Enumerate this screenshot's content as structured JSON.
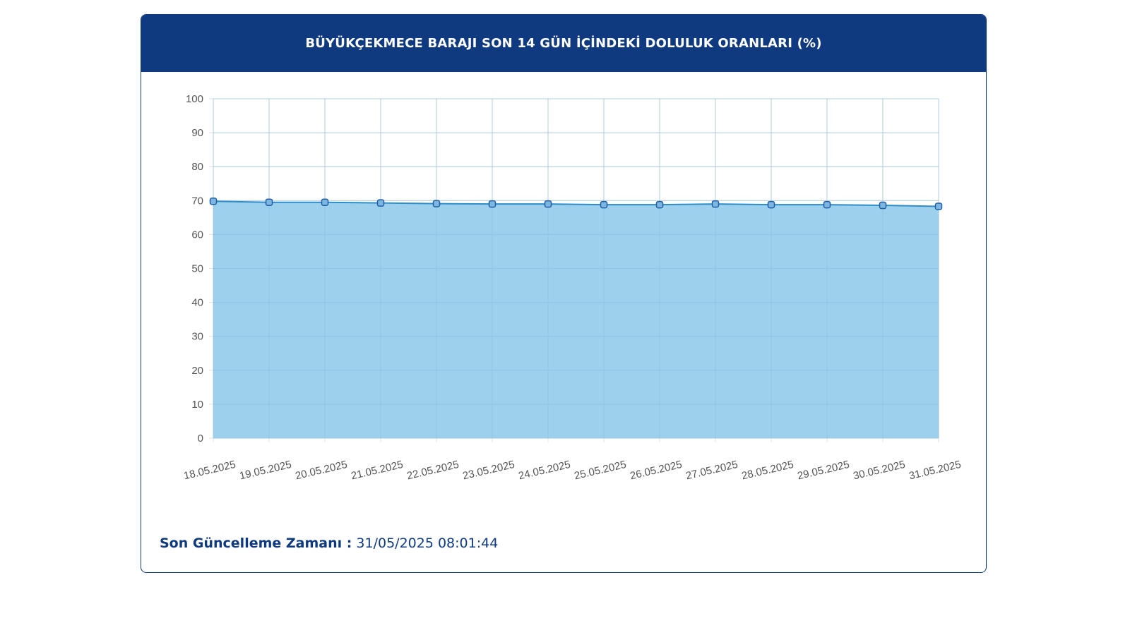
{
  "header": {
    "title": "BÜYÜKÇEKMECE BARAJI SON 14 GÜN İÇİNDEKİ DOLULUK ORANLARI (%)"
  },
  "footer": {
    "label": "Son Güncelleme Zamanı :",
    "value": "31/05/2025 08:01:44"
  },
  "colors": {
    "header_bg": "#0f3a80",
    "area_fill": "#9dd0ec",
    "line": "#2d8ec9",
    "marker": "#1f5fa8"
  },
  "chart_data": {
    "type": "area",
    "categories": [
      "18.05.2025",
      "19.05.2025",
      "20.05.2025",
      "21.05.2025",
      "22.05.2025",
      "23.05.2025",
      "24.05.2025",
      "25.05.2025",
      "26.05.2025",
      "27.05.2025",
      "28.05.2025",
      "29.05.2025",
      "30.05.2025",
      "31.05.2025"
    ],
    "values": [
      69.8,
      69.5,
      69.5,
      69.3,
      69.1,
      69.0,
      69.0,
      68.8,
      68.8,
      69.0,
      68.8,
      68.8,
      68.6,
      68.3
    ],
    "ylim": [
      0,
      100
    ],
    "yticks": [
      0,
      10,
      20,
      30,
      40,
      50,
      60,
      70,
      80,
      90,
      100
    ],
    "grid": true,
    "legend": false
  }
}
